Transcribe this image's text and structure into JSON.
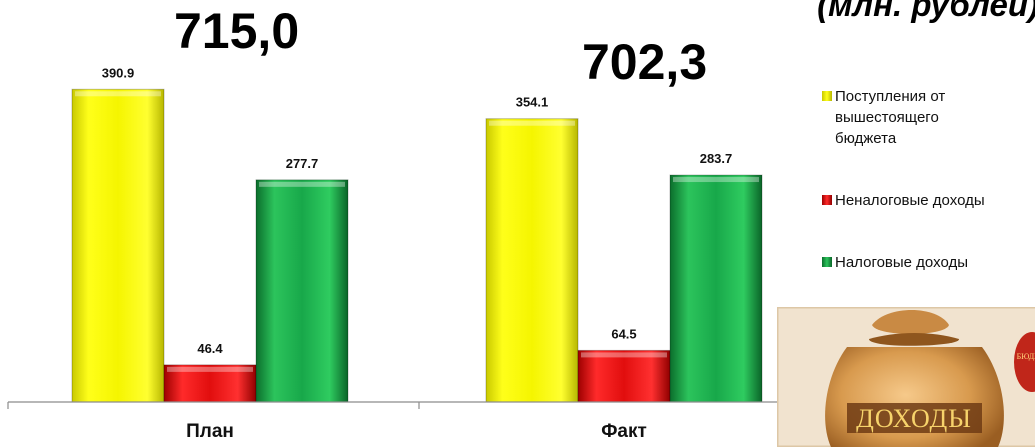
{
  "header": {
    "units": "(млн. рублей)"
  },
  "totals": {
    "plan": "715,0",
    "fact": "702,3"
  },
  "chart_data": {
    "type": "bar",
    "categories": [
      "План",
      "Факт"
    ],
    "series": [
      {
        "name": "Поступления от вышестоящего бюджета",
        "color": "#f2f200",
        "values": [
          390.9,
          354.1
        ],
        "labels": [
          "390.9",
          "354.1"
        ]
      },
      {
        "name": "Неналоговые доходы",
        "color": "#e10e0e",
        "values": [
          46.4,
          64.5
        ],
        "labels": [
          "46.4",
          "64.5"
        ]
      },
      {
        "name": "Налоговые доходы",
        "color": "#18a84a",
        "values": [
          277.7,
          283.7
        ],
        "labels": [
          "277.7",
          "283.7"
        ]
      }
    ],
    "ylim": [
      0,
      430
    ],
    "grid": false,
    "legend_position": "right"
  },
  "legend": {
    "items": [
      {
        "label": "Поступления от вышестоящего бюджета",
        "color": "#f2f200",
        "icon": "yellow-square-icon"
      },
      {
        "label": "Неналоговые доходы",
        "color": "#e10e0e",
        "icon": "red-square-icon"
      },
      {
        "label": "Налоговые доходы",
        "color": "#18a84a",
        "icon": "green-square-icon"
      }
    ]
  },
  "picture": {
    "label": "ДОХОДЫ",
    "icon": "money-bag-icon"
  }
}
